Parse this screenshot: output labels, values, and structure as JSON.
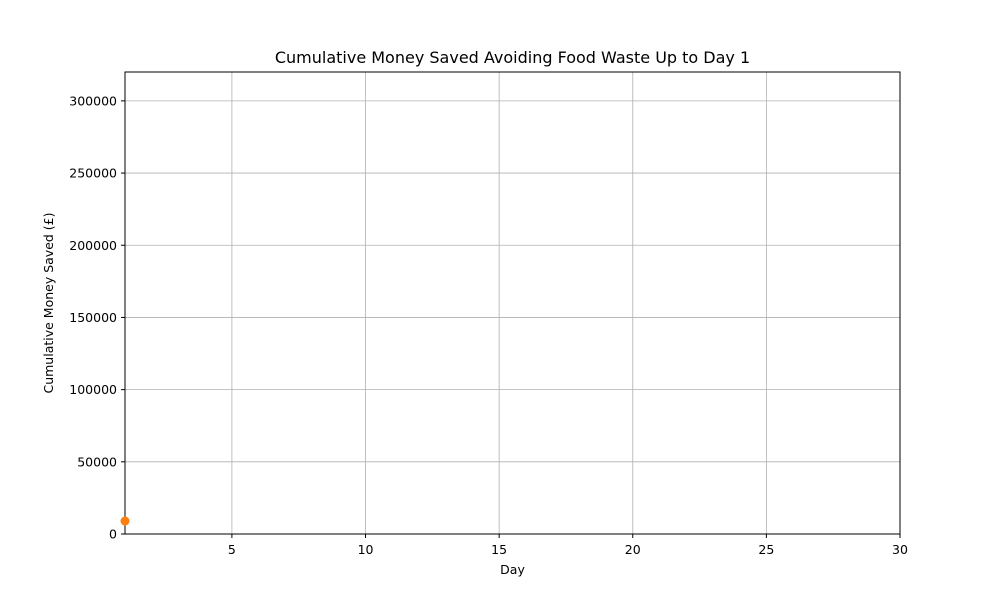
{
  "chart_data": {
    "type": "scatter",
    "title": "Cumulative Money Saved Avoiding Food Waste Up to Day 1",
    "xlabel": "Day",
    "ylabel": "Cumulative Money Saved (£)",
    "xlim": [
      1,
      30
    ],
    "ylim": [
      0,
      320000
    ],
    "xticks": [
      5,
      10,
      15,
      20,
      25,
      30
    ],
    "yticks": [
      0,
      50000,
      100000,
      150000,
      200000,
      250000,
      300000
    ],
    "grid": true,
    "series": [
      {
        "color": "#ff7f0e",
        "points": [
          {
            "x": 1,
            "y": 9000
          }
        ]
      }
    ]
  }
}
